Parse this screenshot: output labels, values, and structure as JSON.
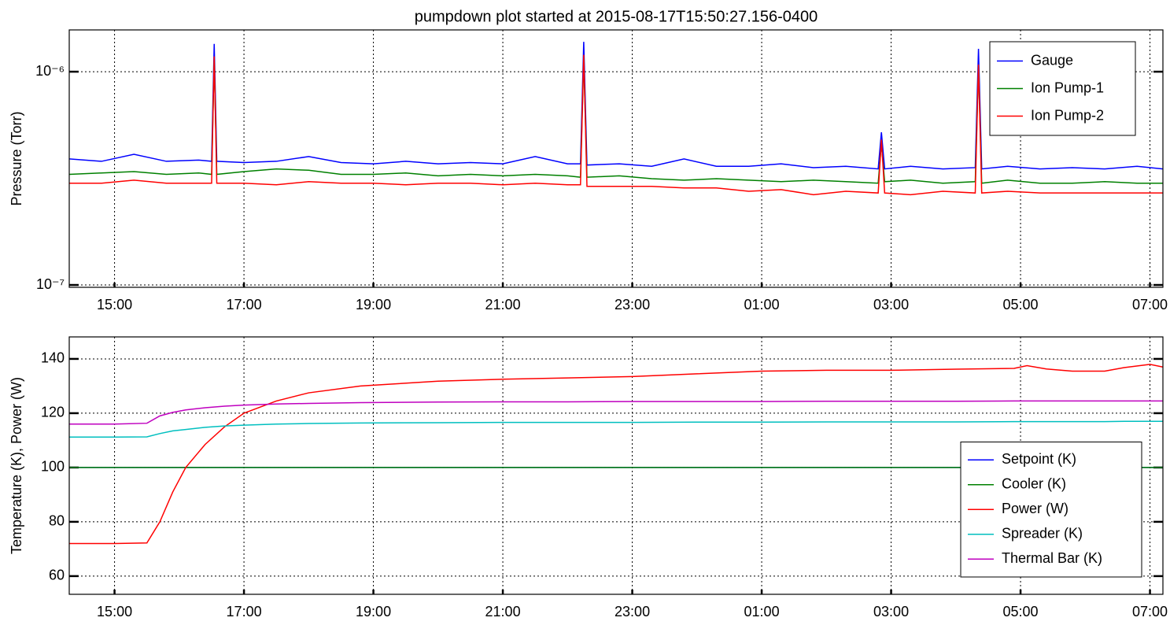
{
  "chart_data": [
    {
      "type": "line",
      "title": "pumpdown plot started at 2015-08-17T15:50:27.156-0400",
      "y_label": "Pressure (Torr)",
      "yscale": "log",
      "grid": true,
      "legend": "upper right",
      "xlim": [
        14.3,
        31.2
      ],
      "ylim": [
        9.75e-08,
        1.57e-06
      ],
      "xticks": [
        {
          "value": 15,
          "label": "15:00"
        },
        {
          "value": 17,
          "label": "17:00"
        },
        {
          "value": 19,
          "label": "19:00"
        },
        {
          "value": 21,
          "label": "21:00"
        },
        {
          "value": 23,
          "label": "23:00"
        },
        {
          "value": 25,
          "label": "01:00"
        },
        {
          "value": 27,
          "label": "03:00"
        },
        {
          "value": 29,
          "label": "05:00"
        },
        {
          "value": 31,
          "label": "07:00"
        }
      ],
      "yticks": [
        {
          "value": 1e-07,
          "label": "10⁻⁷"
        },
        {
          "value": 1e-06,
          "label": "10⁻⁶"
        }
      ],
      "x": [
        14.3,
        14.8,
        15.3,
        15.8,
        16.3,
        16.5,
        16.54,
        16.58,
        17.0,
        17.5,
        18.0,
        18.5,
        19.0,
        19.5,
        20.0,
        20.5,
        21.0,
        21.5,
        22.0,
        22.2,
        22.25,
        22.3,
        22.8,
        23.3,
        23.8,
        24.3,
        24.8,
        25.3,
        25.8,
        26.3,
        26.8,
        26.85,
        26.9,
        27.3,
        27.8,
        28.3,
        28.35,
        28.4,
        28.8,
        29.3,
        29.8,
        30.3,
        30.8,
        31.2
      ],
      "series": [
        {
          "name": "Gauge",
          "color": "#0000ff",
          "values": [
            3.9e-07,
            3.8e-07,
            4.1e-07,
            3.8e-07,
            3.85e-07,
            3.8e-07,
            1.35e-06,
            3.8e-07,
            3.75e-07,
            3.8e-07,
            4e-07,
            3.75e-07,
            3.7e-07,
            3.8e-07,
            3.7e-07,
            3.75e-07,
            3.7e-07,
            4e-07,
            3.7e-07,
            3.7e-07,
            1.38e-06,
            3.65e-07,
            3.7e-07,
            3.6e-07,
            3.9e-07,
            3.6e-07,
            3.6e-07,
            3.7e-07,
            3.55e-07,
            3.6e-07,
            3.5e-07,
            5.2e-07,
            3.5e-07,
            3.6e-07,
            3.5e-07,
            3.55e-07,
            1.28e-06,
            3.5e-07,
            3.6e-07,
            3.5e-07,
            3.55e-07,
            3.5e-07,
            3.6e-07,
            3.5e-07
          ]
        },
        {
          "name": "Ion Pump-1",
          "color": "#008000",
          "values": [
            3.3e-07,
            3.35e-07,
            3.4e-07,
            3.3e-07,
            3.35e-07,
            3.3e-07,
            1.15e-06,
            3.3e-07,
            3.4e-07,
            3.5e-07,
            3.45e-07,
            3.3e-07,
            3.3e-07,
            3.35e-07,
            3.25e-07,
            3.3e-07,
            3.25e-07,
            3.3e-07,
            3.25e-07,
            3.2e-07,
            1.15e-06,
            3.2e-07,
            3.25e-07,
            3.15e-07,
            3.1e-07,
            3.15e-07,
            3.1e-07,
            3.05e-07,
            3.1e-07,
            3.05e-07,
            3e-07,
            4.6e-07,
            3.05e-07,
            3.1e-07,
            3e-07,
            3.05e-07,
            1.05e-06,
            3e-07,
            3.1e-07,
            3e-07,
            3e-07,
            3.05e-07,
            3e-07,
            3e-07
          ]
        },
        {
          "name": "Ion Pump-2",
          "color": "#ff0000",
          "values": [
            3e-07,
            3e-07,
            3.1e-07,
            3e-07,
            3e-07,
            3e-07,
            1.18e-06,
            3e-07,
            3e-07,
            2.95e-07,
            3.05e-07,
            3e-07,
            3e-07,
            2.95e-07,
            3e-07,
            3e-07,
            2.95e-07,
            3e-07,
            2.95e-07,
            2.95e-07,
            1.2e-06,
            2.9e-07,
            2.9e-07,
            2.9e-07,
            2.85e-07,
            2.85e-07,
            2.75e-07,
            2.8e-07,
            2.65e-07,
            2.75e-07,
            2.7e-07,
            4.8e-07,
            2.7e-07,
            2.65e-07,
            2.75e-07,
            2.7e-07,
            1.08e-06,
            2.7e-07,
            2.75e-07,
            2.7e-07,
            2.7e-07,
            2.7e-07,
            2.7e-07,
            2.7e-07
          ]
        }
      ]
    },
    {
      "type": "line",
      "y_label": "Temperature (K), Power (W)",
      "grid": true,
      "legend": "lower right",
      "xlim": [
        14.3,
        31.2
      ],
      "ylim": [
        53.3,
        148.1
      ],
      "xticks": [
        {
          "value": 15,
          "label": "15:00"
        },
        {
          "value": 17,
          "label": "17:00"
        },
        {
          "value": 19,
          "label": "19:00"
        },
        {
          "value": 21,
          "label": "21:00"
        },
        {
          "value": 23,
          "label": "23:00"
        },
        {
          "value": 25,
          "label": "01:00"
        },
        {
          "value": 27,
          "label": "03:00"
        },
        {
          "value": 29,
          "label": "05:00"
        },
        {
          "value": 31,
          "label": "07:00"
        }
      ],
      "yticks": [
        60,
        80,
        100,
        120,
        140
      ],
      "x": [
        14.3,
        15.0,
        15.5,
        15.7,
        15.9,
        16.1,
        16.4,
        16.7,
        17.0,
        17.5,
        18.0,
        18.8,
        20.0,
        21.0,
        22.0,
        23.0,
        24.0,
        25.0,
        26.0,
        27.0,
        28.0,
        28.9,
        29.1,
        29.4,
        29.8,
        30.3,
        30.6,
        31.0,
        31.2
      ],
      "series": [
        {
          "name": "Setpoint (K)",
          "color": "#0000ff",
          "values": [
            100,
            100,
            100,
            100,
            100,
            100,
            100,
            100,
            100,
            100,
            100,
            100,
            100,
            100,
            100,
            100,
            100,
            100,
            100,
            100,
            100,
            100,
            100,
            100,
            100,
            100,
            100,
            100,
            100
          ]
        },
        {
          "name": "Cooler (K)",
          "color": "#008000",
          "values": [
            100,
            100,
            100,
            100,
            100,
            100,
            100,
            100,
            100,
            100,
            100,
            100,
            100,
            100,
            100,
            100,
            100,
            100,
            100,
            100,
            100,
            100,
            100,
            100,
            100,
            100,
            100,
            100,
            100
          ]
        },
        {
          "name": "Power (W)",
          "color": "#ff0000",
          "values": [
            72,
            72,
            72.2,
            80,
            91,
            100,
            108.5,
            115,
            120,
            124.5,
            127.5,
            130,
            131.8,
            132.5,
            133,
            133.5,
            134.5,
            135.5,
            135.8,
            135.8,
            136.2,
            136.5,
            137.5,
            136.3,
            135.5,
            135.5,
            136.8,
            138,
            137
          ]
        },
        {
          "name": "Spreader (K)",
          "color": "#00bfbf",
          "values": [
            111.2,
            111.2,
            111.3,
            112.5,
            113.5,
            114,
            114.8,
            115.3,
            115.6,
            116,
            116.2,
            116.4,
            116.5,
            116.6,
            116.6,
            116.6,
            116.7,
            116.7,
            116.8,
            116.8,
            116.8,
            116.9,
            116.9,
            116.9,
            116.9,
            116.9,
            117,
            117,
            117
          ]
        },
        {
          "name": "Thermal Bar (K)",
          "color": "#bf00bf",
          "values": [
            116,
            116,
            116.3,
            119,
            120.3,
            121.2,
            122,
            122.6,
            123,
            123.4,
            123.6,
            123.9,
            124.1,
            124.2,
            124.2,
            124.3,
            124.3,
            124.3,
            124.4,
            124.4,
            124.4,
            124.5,
            124.5,
            124.5,
            124.5,
            124.5,
            124.5,
            124.5,
            124.5
          ]
        }
      ]
    }
  ]
}
